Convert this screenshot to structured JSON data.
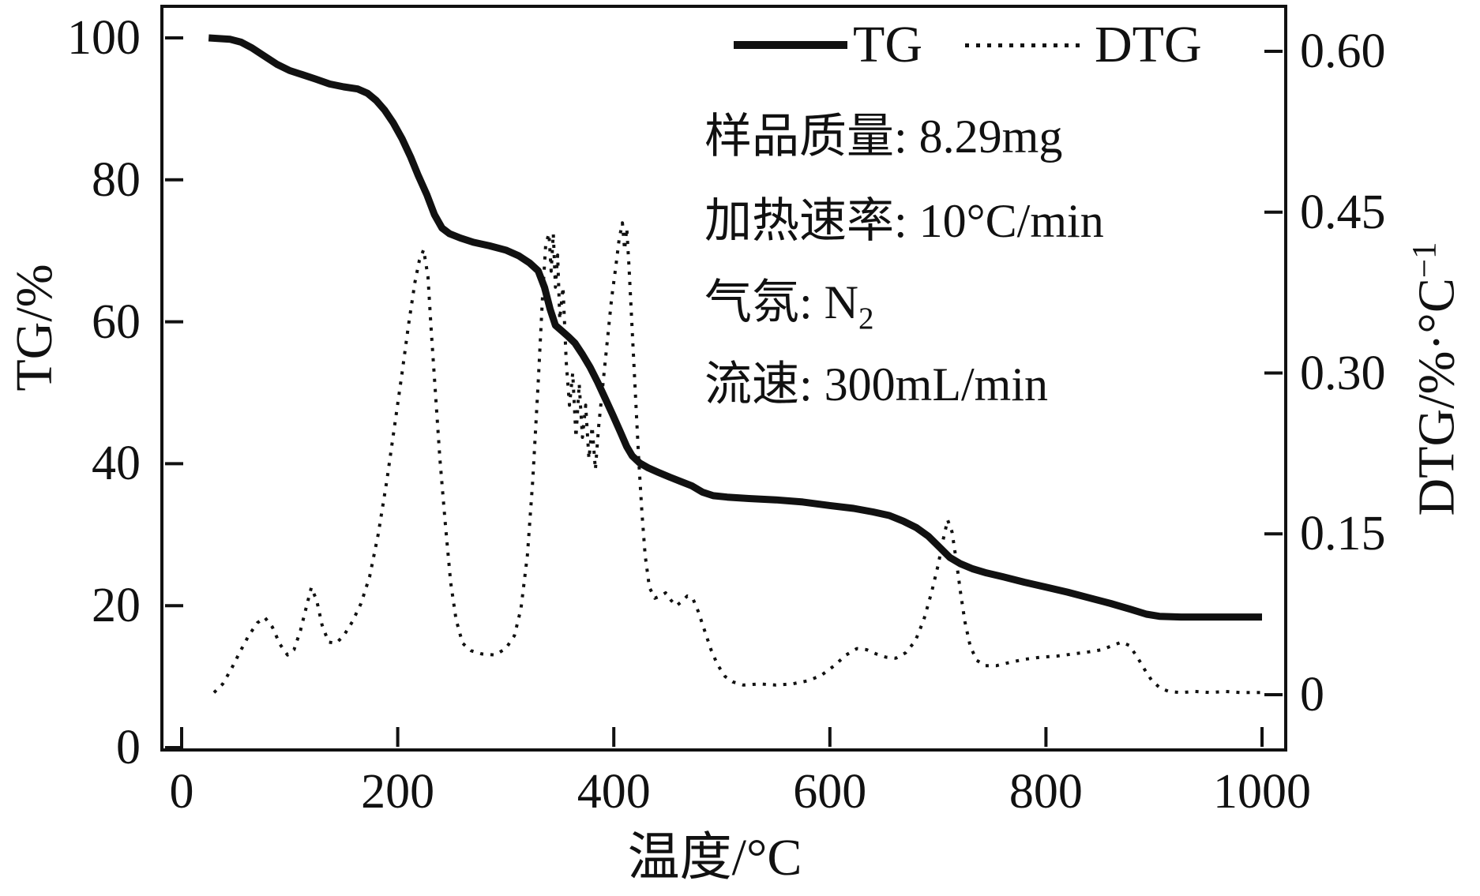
{
  "annotations": {
    "sample_mass": "样品质量: 8.29mg",
    "heating_rate": "加热速率: 10°C/min",
    "atmosphere_prefix": "气氛: N",
    "atmosphere_sub": "2",
    "flow_rate": "流速: 300mL/min"
  },
  "colors": {
    "line": "#111111",
    "background": "#ffffff"
  },
  "chart_data": {
    "type": "line",
    "title": "",
    "xlabel": "温度/°C",
    "ylabel_left": "TG/%",
    "ylabel_right_prefix": "DTG/%·°C",
    "ylabel_right_sup": "−1",
    "x_range": [
      0,
      1000
    ],
    "y_left_range": [
      0,
      100
    ],
    "y_right_range": [
      0,
      0.6
    ],
    "x_ticks": [
      0,
      200,
      400,
      600,
      800,
      1000
    ],
    "y_left_ticks": [
      0,
      20,
      40,
      60,
      80,
      100
    ],
    "y_right_tick_labels": [
      "0",
      "0.15",
      "0.30",
      "0.45",
      "0.60"
    ],
    "y_right_tick_values": [
      0,
      0.15,
      0.3,
      0.45,
      0.6
    ],
    "grid": false,
    "legend_position": "top-center-inside",
    "series": [
      {
        "name": "TG",
        "axis": "left",
        "style": "solid",
        "points": [
          [
            25,
            100
          ],
          [
            45,
            99.8
          ],
          [
            55,
            99.4
          ],
          [
            65,
            98.6
          ],
          [
            75,
            97.6
          ],
          [
            88,
            96.3
          ],
          [
            100,
            95.4
          ],
          [
            112,
            94.8
          ],
          [
            124,
            94.2
          ],
          [
            137,
            93.5
          ],
          [
            150,
            93.1
          ],
          [
            163,
            92.8
          ],
          [
            172,
            92.2
          ],
          [
            180,
            91.2
          ],
          [
            188,
            89.8
          ],
          [
            196,
            88.0
          ],
          [
            204,
            85.8
          ],
          [
            212,
            83.2
          ],
          [
            219,
            80.6
          ],
          [
            227,
            77.9
          ],
          [
            234,
            75.1
          ],
          [
            241,
            73.2
          ],
          [
            248,
            72.4
          ],
          [
            258,
            71.8
          ],
          [
            270,
            71.2
          ],
          [
            285,
            70.7
          ],
          [
            300,
            70.1
          ],
          [
            312,
            69.3
          ],
          [
            322,
            68.3
          ],
          [
            330,
            67.2
          ],
          [
            336,
            64.8
          ],
          [
            341,
            61.8
          ],
          [
            346,
            59.5
          ],
          [
            352,
            58.7
          ],
          [
            358,
            57.9
          ],
          [
            364,
            57.0
          ],
          [
            371,
            55.4
          ],
          [
            378,
            53.6
          ],
          [
            385,
            51.5
          ],
          [
            392,
            49.2
          ],
          [
            399,
            46.9
          ],
          [
            406,
            44.5
          ],
          [
            412,
            42.4
          ],
          [
            417,
            41.1
          ],
          [
            424,
            40.1
          ],
          [
            432,
            39.4
          ],
          [
            441,
            38.8
          ],
          [
            452,
            38.1
          ],
          [
            462,
            37.5
          ],
          [
            472,
            36.9
          ],
          [
            482,
            36.0
          ],
          [
            492,
            35.5
          ],
          [
            505,
            35.3
          ],
          [
            525,
            35.1
          ],
          [
            550,
            34.9
          ],
          [
            575,
            34.6
          ],
          [
            600,
            34.1
          ],
          [
            622,
            33.7
          ],
          [
            640,
            33.2
          ],
          [
            655,
            32.7
          ],
          [
            668,
            31.9
          ],
          [
            680,
            31.0
          ],
          [
            691,
            29.8
          ],
          [
            701,
            28.3
          ],
          [
            711,
            26.8
          ],
          [
            721,
            25.9
          ],
          [
            732,
            25.2
          ],
          [
            745,
            24.6
          ],
          [
            762,
            24.0
          ],
          [
            780,
            23.3
          ],
          [
            800,
            22.6
          ],
          [
            820,
            21.9
          ],
          [
            840,
            21.1
          ],
          [
            860,
            20.3
          ],
          [
            878,
            19.5
          ],
          [
            893,
            18.8
          ],
          [
            905,
            18.5
          ],
          [
            925,
            18.4
          ],
          [
            960,
            18.4
          ],
          [
            1000,
            18.4
          ]
        ]
      },
      {
        "name": "DTG",
        "axis": "right",
        "style": "dotted",
        "points": [
          [
            30,
            0.002
          ],
          [
            38,
            0.01
          ],
          [
            46,
            0.024
          ],
          [
            54,
            0.04
          ],
          [
            62,
            0.055
          ],
          [
            70,
            0.067
          ],
          [
            77,
            0.072
          ],
          [
            84,
            0.063
          ],
          [
            91,
            0.047
          ],
          [
            98,
            0.037
          ],
          [
            104,
            0.042
          ],
          [
            110,
            0.06
          ],
          [
            115,
            0.08
          ],
          [
            120,
            0.1
          ],
          [
            125,
            0.088
          ],
          [
            130,
            0.065
          ],
          [
            136,
            0.049
          ],
          [
            143,
            0.048
          ],
          [
            150,
            0.055
          ],
          [
            158,
            0.068
          ],
          [
            166,
            0.085
          ],
          [
            174,
            0.11
          ],
          [
            182,
            0.15
          ],
          [
            190,
            0.2
          ],
          [
            197,
            0.25
          ],
          [
            204,
            0.3
          ],
          [
            210,
            0.345
          ],
          [
            216,
            0.385
          ],
          [
            220,
            0.405
          ],
          [
            224,
            0.415
          ],
          [
            228,
            0.39
          ],
          [
            231,
            0.34
          ],
          [
            235,
            0.28
          ],
          [
            239,
            0.22
          ],
          [
            244,
            0.16
          ],
          [
            249,
            0.105
          ],
          [
            254,
            0.07
          ],
          [
            260,
            0.048
          ],
          [
            268,
            0.041
          ],
          [
            278,
            0.038
          ],
          [
            290,
            0.037
          ],
          [
            300,
            0.043
          ],
          [
            308,
            0.055
          ],
          [
            314,
            0.08
          ],
          [
            320,
            0.13
          ],
          [
            325,
            0.2
          ],
          [
            330,
            0.29
          ],
          [
            334,
            0.37
          ],
          [
            337,
            0.42
          ],
          [
            340,
            0.43
          ],
          [
            342,
            0.395
          ],
          [
            344,
            0.43
          ],
          [
            346,
            0.38
          ],
          [
            348,
            0.41
          ],
          [
            350,
            0.35
          ],
          [
            353,
            0.38
          ],
          [
            356,
            0.31
          ],
          [
            359,
            0.27
          ],
          [
            362,
            0.3
          ],
          [
            365,
            0.24
          ],
          [
            368,
            0.29
          ],
          [
            371,
            0.24
          ],
          [
            374,
            0.27
          ],
          [
            377,
            0.22
          ],
          [
            380,
            0.25
          ],
          [
            383,
            0.21
          ],
          [
            386,
            0.25
          ],
          [
            390,
            0.29
          ],
          [
            394,
            0.33
          ],
          [
            398,
            0.37
          ],
          [
            402,
            0.4
          ],
          [
            405,
            0.425
          ],
          [
            408,
            0.44
          ],
          [
            410,
            0.415
          ],
          [
            412,
            0.435
          ],
          [
            414,
            0.4
          ],
          [
            417,
            0.34
          ],
          [
            420,
            0.28
          ],
          [
            423,
            0.22
          ],
          [
            426,
            0.17
          ],
          [
            429,
            0.13
          ],
          [
            433,
            0.1
          ],
          [
            438,
            0.09
          ],
          [
            443,
            0.092
          ],
          [
            448,
            0.095
          ],
          [
            453,
            0.088
          ],
          [
            458,
            0.083
          ],
          [
            463,
            0.087
          ],
          [
            468,
            0.092
          ],
          [
            473,
            0.09
          ],
          [
            478,
            0.078
          ],
          [
            484,
            0.06
          ],
          [
            490,
            0.042
          ],
          [
            496,
            0.028
          ],
          [
            503,
            0.017
          ],
          [
            510,
            0.012
          ],
          [
            520,
            0.009
          ],
          [
            535,
            0.01
          ],
          [
            550,
            0.009
          ],
          [
            565,
            0.01
          ],
          [
            580,
            0.013
          ],
          [
            592,
            0.018
          ],
          [
            604,
            0.027
          ],
          [
            615,
            0.037
          ],
          [
            625,
            0.043
          ],
          [
            634,
            0.042
          ],
          [
            643,
            0.038
          ],
          [
            652,
            0.035
          ],
          [
            661,
            0.034
          ],
          [
            670,
            0.039
          ],
          [
            679,
            0.05
          ],
          [
            687,
            0.07
          ],
          [
            694,
            0.095
          ],
          [
            700,
            0.12
          ],
          [
            705,
            0.145
          ],
          [
            709,
            0.163
          ],
          [
            713,
            0.152
          ],
          [
            717,
            0.125
          ],
          [
            721,
            0.095
          ],
          [
            725,
            0.068
          ],
          [
            730,
            0.045
          ],
          [
            736,
            0.032
          ],
          [
            744,
            0.027
          ],
          [
            754,
            0.027
          ],
          [
            766,
            0.03
          ],
          [
            780,
            0.033
          ],
          [
            795,
            0.035
          ],
          [
            810,
            0.036
          ],
          [
            825,
            0.038
          ],
          [
            840,
            0.04
          ],
          [
            852,
            0.042
          ],
          [
            862,
            0.046
          ],
          [
            870,
            0.049
          ],
          [
            877,
            0.046
          ],
          [
            884,
            0.036
          ],
          [
            891,
            0.024
          ],
          [
            898,
            0.013
          ],
          [
            906,
            0.006
          ],
          [
            914,
            0.003
          ],
          [
            925,
            0.002
          ],
          [
            938,
            0.003
          ],
          [
            952,
            0.002
          ],
          [
            966,
            0.003
          ],
          [
            980,
            0.002
          ],
          [
            1000,
            0.002
          ]
        ]
      }
    ]
  }
}
